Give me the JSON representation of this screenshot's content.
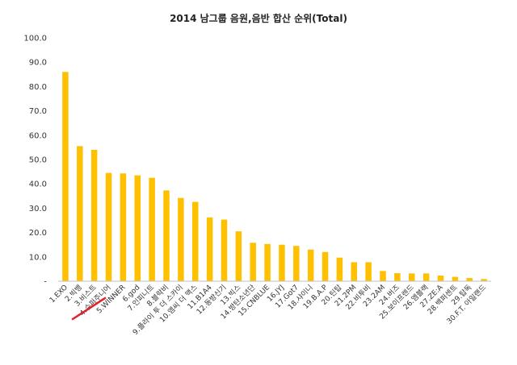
{
  "chart_data": {
    "type": "bar",
    "title": "2014 남그룹 음원,음반 합산 순위(Total)",
    "xlabel": "",
    "ylabel": "",
    "ylim": [
      0,
      100
    ],
    "yticks": [
      "-",
      "10.0",
      "20.0",
      "30.0",
      "40.0",
      "50.0",
      "60.0",
      "70.0",
      "80.0",
      "90.0",
      "100.0"
    ],
    "grid": false,
    "legend": "none",
    "bar_color": "#FFC000",
    "annotation_color": "#E0202A",
    "categories": [
      "1.EXO",
      "2.빅뱅",
      "3.비스트",
      "4.슈퍼주니어",
      "5.WINNER",
      "6.god",
      "7.인피니트",
      "8.블락비",
      "9.플라이 투 더 스카이",
      "10.엠씨 더 맥스",
      "11.B1A4",
      "12.동방신기",
      "13.빅스",
      "14.방탄소년단",
      "15.CNBLUE",
      "16.JYJ",
      "17.Got7",
      "18.샤이니",
      "19.B.A.P",
      "20.틴탑",
      "21.2PM",
      "22.비투비",
      "23.2AM",
      "24.버즈",
      "25.보이프렌드",
      "26.엠블랙",
      "27.ZE:A",
      "28.백퍼센트",
      "29.탑독",
      "30.F.T. 아일랜드"
    ],
    "values": [
      86.0,
      55.5,
      54.0,
      44.5,
      44.3,
      43.5,
      42.5,
      37.3,
      34.2,
      32.6,
      26.2,
      25.3,
      20.5,
      15.8,
      15.3,
      15.0,
      14.5,
      13.0,
      12.0,
      9.7,
      7.8,
      7.8,
      4.2,
      3.3,
      3.2,
      3.2,
      2.3,
      1.8,
      1.3,
      0.9
    ]
  }
}
